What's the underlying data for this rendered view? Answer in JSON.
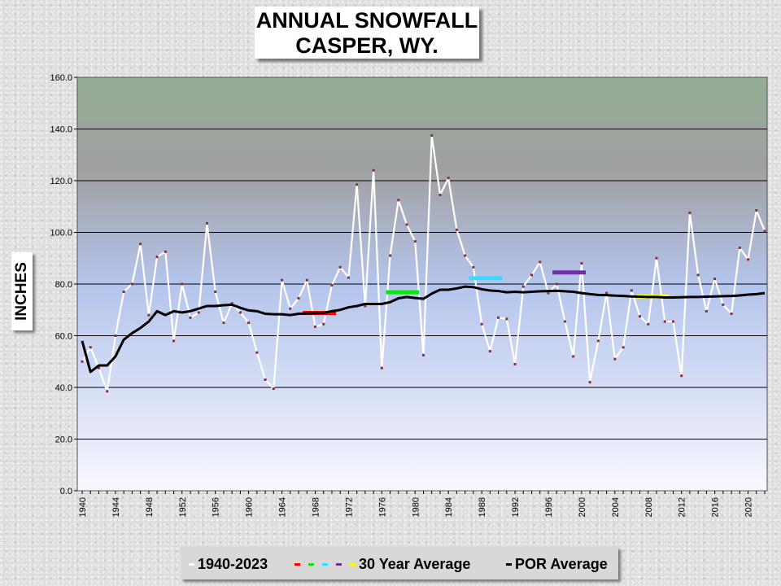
{
  "title": {
    "line1": "ANNUAL SNOWFALL",
    "line2": "CASPER, WY."
  },
  "chart_data": {
    "type": "line",
    "title": "ANNUAL SNOWFALL CASPER, WY.",
    "ylabel": "INCHES",
    "xlabel": "",
    "ylim": [
      0,
      160
    ],
    "yticks": [
      "0.0",
      "20.0",
      "40.0",
      "60.0",
      "80.0",
      "100.0",
      "120.0",
      "140.0",
      "160.0"
    ],
    "xtick_labels": [
      "1940",
      "1944",
      "1948",
      "1952",
      "1956",
      "1960",
      "1964",
      "1968",
      "1972",
      "1976",
      "1980",
      "1984",
      "1988",
      "1992",
      "1996",
      "2000",
      "2004",
      "2008",
      "2012",
      "2016",
      "2020"
    ],
    "x": [
      1940,
      1941,
      1942,
      1943,
      1944,
      1945,
      1946,
      1947,
      1948,
      1949,
      1950,
      1951,
      1952,
      1953,
      1954,
      1955,
      1956,
      1957,
      1958,
      1959,
      1960,
      1961,
      1962,
      1963,
      1964,
      1965,
      1966,
      1967,
      1968,
      1969,
      1970,
      1971,
      1972,
      1973,
      1974,
      1975,
      1976,
      1977,
      1978,
      1979,
      1980,
      1981,
      1982,
      1983,
      1984,
      1985,
      1986,
      1987,
      1988,
      1989,
      1990,
      1991,
      1992,
      1993,
      1994,
      1995,
      1996,
      1997,
      1998,
      1999,
      2000,
      2001,
      2002,
      2003,
      2004,
      2005,
      2006,
      2007,
      2008,
      2009,
      2010,
      2011,
      2012,
      2013,
      2014,
      2015,
      2016,
      2017,
      2018,
      2019,
      2020,
      2021,
      2022
    ],
    "series": [
      {
        "name": "1940-2023",
        "color": "#ffffff",
        "values": [
          50.0,
          55.5,
          47.5,
          38.5,
          60.0,
          77.0,
          80.0,
          95.5,
          68.0,
          90.5,
          92.5,
          58.0,
          80.0,
          67.0,
          69.0,
          103.5,
          77.0,
          65.0,
          72.5,
          69.0,
          65.0,
          53.5,
          43.0,
          39.5,
          81.5,
          70.5,
          74.5,
          81.5,
          63.5,
          64.5,
          79.5,
          86.5,
          82.5,
          118.5,
          71.5,
          124.0,
          47.5,
          91.0,
          112.5,
          103.0,
          96.5,
          52.5,
          137.5,
          114.5,
          121.0,
          101.0,
          91.0,
          86.5,
          64.5,
          54.0,
          67.0,
          66.5,
          49.0,
          79.0,
          83.5,
          88.5,
          76.5,
          80.0,
          65.5,
          52.0,
          88.0,
          42.0,
          58.0,
          76.5,
          51.0,
          55.5,
          77.5,
          67.5,
          64.5,
          90.0,
          65.5,
          65.5,
          44.5,
          107.5,
          83.5,
          69.5,
          82.0,
          72.0,
          68.5,
          94.0,
          89.5,
          108.5,
          100.5
        ]
      },
      {
        "name": "POR Average",
        "color": "#000000",
        "values": [
          58.0,
          46.0,
          48.5,
          48.5,
          52.0,
          58.5,
          61.0,
          63.0,
          65.5,
          69.5,
          68.0,
          69.5,
          69.0,
          69.5,
          70.5,
          71.5,
          71.5,
          71.8,
          72.0,
          70.8,
          69.8,
          69.5,
          68.5,
          68.3,
          68.3,
          68.0,
          68.5,
          68.6,
          68.7,
          68.8,
          69.5,
          70.0,
          71.0,
          71.5,
          72.3,
          72.3,
          72.3,
          73.0,
          74.5,
          75.0,
          74.6,
          74.3,
          76.3,
          77.8,
          77.8,
          78.3,
          79.0,
          78.8,
          78.0,
          77.5,
          77.3,
          76.8,
          77.0,
          76.8,
          77.0,
          77.2,
          77.3,
          77.4,
          77.2,
          77.0,
          76.5,
          76.1,
          75.8,
          75.7,
          75.5,
          75.4,
          75.2,
          75.1,
          75.0,
          75.0,
          74.8,
          74.8,
          74.9,
          75.0,
          75.0,
          75.1,
          75.2,
          75.3,
          75.4,
          75.6,
          75.9,
          76.1,
          76.5
        ]
      }
    ],
    "thirty_year_averages": [
      {
        "name": "30 Year Average",
        "color": "#ff0000",
        "x_start": 1966.5,
        "x_end": 1970.5,
        "value": 68.8
      },
      {
        "name": "30 Year Average",
        "color": "#00ee00",
        "x_start": 1976.5,
        "x_end": 1980.5,
        "value": 76.8
      },
      {
        "name": "30 Year Average",
        "color": "#33ddff",
        "x_start": 1986.5,
        "x_end": 1990.5,
        "value": 82.3
      },
      {
        "name": "30 Year Average",
        "color": "#7030a0",
        "x_start": 1996.5,
        "x_end": 2000.5,
        "value": 84.5
      },
      {
        "name": "30 Year Average",
        "color": "#ffff00",
        "x_start": 2006.5,
        "x_end": 2010.5,
        "value": 75.2
      }
    ],
    "grid": true,
    "legend_position": "bottom"
  },
  "legend": {
    "item1": "1940-2023",
    "item2": "30 Year Average",
    "item3": "POR Average",
    "dash_colors": [
      "#ff0000",
      "#00ee00",
      "#33ddff",
      "#7030a0",
      "#ffff00"
    ]
  }
}
